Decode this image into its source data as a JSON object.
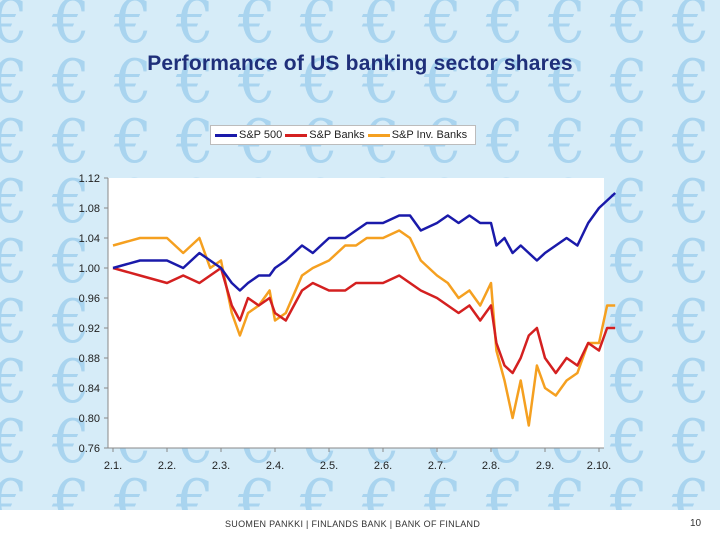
{
  "slide": {
    "title": "Performance of US banking sector shares",
    "footer": "SUOMEN PANKKI | FINLANDS BANK | BANK OF FINLAND",
    "page_number": "10",
    "background_glyph": "€"
  },
  "colors": {
    "background": "#d6ecf8",
    "euro_pattern": "#a9d4ef",
    "title": "#1f2f7a"
  },
  "chart_data": {
    "type": "line",
    "title": "Performance of US banking sector shares",
    "legend_position": "top",
    "grid": false,
    "ylim": [
      0.76,
      1.12
    ],
    "yticks": [
      "1.12",
      "1.08",
      "1.04",
      "1.00",
      "0.96",
      "0.92",
      "0.88",
      "0.84",
      "0.80",
      "0.76"
    ],
    "xlabels": [
      "2.1.",
      "2.2.",
      "2.3.",
      "2.4.",
      "2.5.",
      "2.6.",
      "2.7.",
      "2.8.",
      "2.9.",
      "2.10."
    ],
    "x_points": [
      0,
      0.5,
      1,
      1.3,
      1.6,
      1.8,
      2,
      2.2,
      2.35,
      2.5,
      2.7,
      2.9,
      3,
      3.2,
      3.5,
      3.7,
      4,
      4.3,
      4.5,
      4.7,
      5,
      5.3,
      5.5,
      5.7,
      6,
      6.2,
      6.4,
      6.6,
      6.8,
      7,
      7.1,
      7.25,
      7.4,
      7.55,
      7.7,
      7.85,
      8,
      8.2,
      8.4,
      8.6,
      8.8,
      9,
      9.15,
      9.3
    ],
    "series": [
      {
        "name": "S&P 500",
        "color": "#1a1aaa",
        "values": [
          1.0,
          1.01,
          1.01,
          1.0,
          1.02,
          1.01,
          1.0,
          0.98,
          0.97,
          0.98,
          0.99,
          0.99,
          1.0,
          1.01,
          1.03,
          1.02,
          1.04,
          1.04,
          1.05,
          1.06,
          1.06,
          1.07,
          1.07,
          1.05,
          1.06,
          1.07,
          1.06,
          1.07,
          1.06,
          1.06,
          1.03,
          1.04,
          1.02,
          1.03,
          1.02,
          1.01,
          1.02,
          1.03,
          1.04,
          1.03,
          1.06,
          1.08,
          1.09,
          1.1
        ]
      },
      {
        "name": "S&P Banks",
        "color": "#d42020",
        "values": [
          1.0,
          0.99,
          0.98,
          0.99,
          0.98,
          0.99,
          1.0,
          0.95,
          0.93,
          0.96,
          0.95,
          0.96,
          0.94,
          0.93,
          0.97,
          0.98,
          0.97,
          0.97,
          0.98,
          0.98,
          0.98,
          0.99,
          0.98,
          0.97,
          0.96,
          0.95,
          0.94,
          0.95,
          0.93,
          0.95,
          0.9,
          0.87,
          0.86,
          0.88,
          0.91,
          0.92,
          0.88,
          0.86,
          0.88,
          0.87,
          0.9,
          0.89,
          0.92,
          0.92
        ]
      },
      {
        "name": "S&P Inv. Banks",
        "color": "#f5a020",
        "values": [
          1.03,
          1.04,
          1.04,
          1.02,
          1.04,
          1.0,
          1.01,
          0.94,
          0.91,
          0.94,
          0.95,
          0.97,
          0.93,
          0.94,
          0.99,
          1.0,
          1.01,
          1.03,
          1.03,
          1.04,
          1.04,
          1.05,
          1.04,
          1.01,
          0.99,
          0.98,
          0.96,
          0.97,
          0.95,
          0.98,
          0.89,
          0.85,
          0.8,
          0.85,
          0.79,
          0.87,
          0.84,
          0.83,
          0.85,
          0.86,
          0.9,
          0.9,
          0.95,
          0.95
        ]
      }
    ]
  }
}
